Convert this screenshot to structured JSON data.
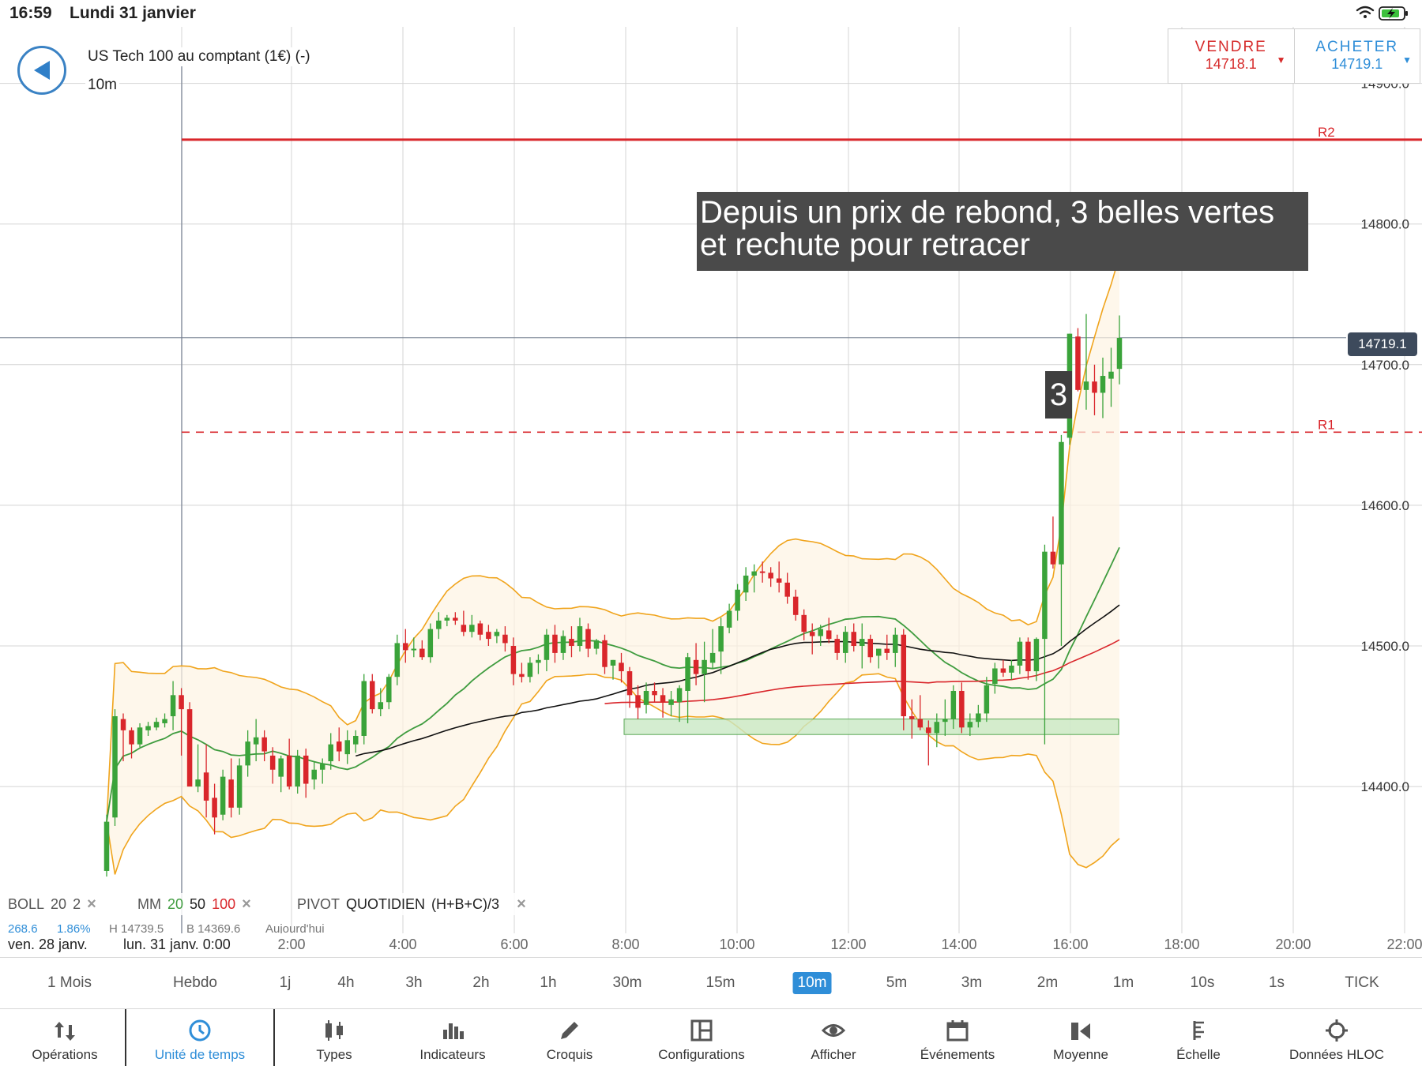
{
  "status": {
    "time": "16:59",
    "date": "Lundi 31 janvier"
  },
  "header": {
    "instrument": "US Tech 100 au comptant (1€) (-)",
    "timeframe": "10m"
  },
  "trade": {
    "sell_label": "VENDRE",
    "sell_price": "14718.1",
    "buy_label": "ACHETER",
    "buy_price": "14719.1",
    "sell_color": "#d62a2a",
    "buy_color": "#2f8ed8"
  },
  "annotation": {
    "line1": "Depuis un prix de rebond, 3 belles vertes",
    "line2": "et rechute pour retracer",
    "marker": "3"
  },
  "price_axis": {
    "labels": [
      "14900.0",
      "14800.0",
      "14700.0",
      "14600.0",
      "14500.0",
      "14400.0"
    ],
    "current": "14719.1"
  },
  "pivots": {
    "r2_label": "R2",
    "r2_value": 14860,
    "r1_label": "R1",
    "r1_value": 14652
  },
  "legend": {
    "boll_name": "BOLL",
    "boll_p1": "20",
    "boll_p2": "2",
    "mm_name": "MM",
    "mm_p1": "20",
    "mm_p2": "50",
    "mm_p3": "100",
    "pivot_name": "PIVOT",
    "pivot_period": "QUOTIDIEN",
    "pivot_formula": "(H+B+C)/3",
    "close_symbol": "×"
  },
  "legend_sub": {
    "v1": "268.6",
    "v2": "1.86%",
    "v3": "H 14739.5",
    "v4": "B 14369.6",
    "v5": "Aujourd'hui"
  },
  "time_axis": {
    "date_left": "ven. 28 janv.",
    "date_right": "lun. 31 janv. 0:00",
    "ticks": [
      "2:00",
      "4:00",
      "6:00",
      "8:00",
      "10:00",
      "12:00",
      "14:00",
      "16:00",
      "18:00",
      "20:00",
      "22:00"
    ]
  },
  "timeframes": [
    {
      "label": "1 Mois"
    },
    {
      "label": "Hebdo"
    },
    {
      "label": "1j"
    },
    {
      "label": "4h"
    },
    {
      "label": "3h"
    },
    {
      "label": "2h"
    },
    {
      "label": "1h"
    },
    {
      "label": "30m"
    },
    {
      "label": "15m"
    },
    {
      "label": "10m",
      "active": true
    },
    {
      "label": "5m"
    },
    {
      "label": "3m"
    },
    {
      "label": "2m"
    },
    {
      "label": "1m"
    },
    {
      "label": "10s"
    },
    {
      "label": "1s"
    },
    {
      "label": "TICK"
    }
  ],
  "toolbar": [
    {
      "label": "Opérations",
      "icon": "arrows-updown-icon"
    },
    {
      "label": "Unité de temps",
      "icon": "clock-icon",
      "active": true
    },
    {
      "label": "Types",
      "icon": "candles-icon"
    },
    {
      "label": "Indicateurs",
      "icon": "bar-chart-icon"
    },
    {
      "label": "Croquis",
      "icon": "pencil-icon"
    },
    {
      "label": "Configurations",
      "icon": "layout-icon"
    },
    {
      "label": "Afficher",
      "icon": "eye-icon"
    },
    {
      "label": "Événements",
      "icon": "calendar-icon"
    },
    {
      "label": "Moyenne",
      "icon": "average-icon"
    },
    {
      "label": "Échelle",
      "icon": "scale-icon"
    },
    {
      "label": "Données HLOC",
      "icon": "crosshair-icon"
    }
  ],
  "colors": {
    "up": "#3aa33a",
    "down": "#d9262b",
    "boll": "#f0a41c",
    "ma20": "#3f9c3f",
    "ma50": "#111111",
    "ma100": "#d9262b",
    "pivot": "#d9262b",
    "accent": "#2f8ed8"
  },
  "chart_data": {
    "type": "candlestick",
    "ylim": [
      14300,
      14950
    ],
    "support_zone": [
      14437,
      14448
    ],
    "ohlc": [
      [
        14340,
        14380,
        14336,
        14375
      ],
      [
        14378,
        14455,
        14372,
        14450
      ],
      [
        14448,
        14452,
        14418,
        14440
      ],
      [
        14440,
        14442,
        14420,
        14430
      ],
      [
        14430,
        14445,
        14428,
        14442
      ],
      [
        14440,
        14446,
        14436,
        14443
      ],
      [
        14442,
        14449,
        14440,
        14446
      ],
      [
        14445,
        14452,
        14442,
        14448
      ],
      [
        14450,
        14475,
        14440,
        14465
      ],
      [
        14465,
        14470,
        14422,
        14455
      ],
      [
        14455,
        14460,
        14402,
        14400
      ],
      [
        14400,
        14430,
        14396,
        14405
      ],
      [
        14410,
        14430,
        14378,
        14390
      ],
      [
        14392,
        14402,
        14366,
        14378
      ],
      [
        14380,
        14412,
        14376,
        14407
      ],
      [
        14405,
        14420,
        14378,
        14385
      ],
      [
        14385,
        14420,
        14380,
        14415
      ],
      [
        14415,
        14440,
        14407,
        14432
      ],
      [
        14430,
        14448,
        14418,
        14435
      ],
      [
        14435,
        14440,
        14418,
        14425
      ],
      [
        14422,
        14428,
        14402,
        14412
      ],
      [
        14407,
        14422,
        14396,
        14420
      ],
      [
        14422,
        14434,
        14398,
        14400
      ],
      [
        14400,
        14426,
        14395,
        14422
      ],
      [
        14422,
        14427,
        14392,
        14402
      ],
      [
        14405,
        14418,
        14398,
        14412
      ],
      [
        14412,
        14420,
        14402,
        14416
      ],
      [
        14418,
        14438,
        14412,
        14430
      ],
      [
        14432,
        14442,
        14418,
        14425
      ],
      [
        14423,
        14440,
        14416,
        14433
      ],
      [
        14430,
        14440,
        14424,
        14436
      ],
      [
        14436,
        14480,
        14430,
        14475
      ],
      [
        14475,
        14480,
        14452,
        14455
      ],
      [
        14455,
        14470,
        14450,
        14460
      ],
      [
        14460,
        14480,
        14455,
        14478
      ],
      [
        14478,
        14508,
        14472,
        14502
      ],
      [
        14502,
        14512,
        14488,
        14497
      ],
      [
        14497,
        14506,
        14492,
        14498
      ],
      [
        14498,
        14504,
        14490,
        14492
      ],
      [
        14492,
        14516,
        14488,
        14512
      ],
      [
        14512,
        14524,
        14505,
        14518
      ],
      [
        14518,
        14522,
        14514,
        14520
      ],
      [
        14520,
        14524,
        14515,
        14518
      ],
      [
        14515,
        14525,
        14507,
        14510
      ],
      [
        14510,
        14522,
        14506,
        14515
      ],
      [
        14516,
        14518,
        14504,
        14508
      ],
      [
        14510,
        14515,
        14500,
        14505
      ],
      [
        14507,
        14512,
        14502,
        14510
      ],
      [
        14508,
        14514,
        14496,
        14502
      ],
      [
        14500,
        14506,
        14472,
        14480
      ],
      [
        14480,
        14488,
        14474,
        14478
      ],
      [
        14478,
        14492,
        14474,
        14488
      ],
      [
        14488,
        14494,
        14480,
        14490
      ],
      [
        14490,
        14512,
        14482,
        14508
      ],
      [
        14508,
        14515,
        14488,
        14495
      ],
      [
        14495,
        14511,
        14490,
        14507
      ],
      [
        14505,
        14514,
        14492,
        14500
      ],
      [
        14500,
        14520,
        14496,
        14514
      ],
      [
        14512,
        14516,
        14492,
        14498
      ],
      [
        14498,
        14505,
        14494,
        14504
      ],
      [
        14504,
        14508,
        14480,
        14485
      ],
      [
        14486,
        14490,
        14476,
        14490
      ],
      [
        14488,
        14495,
        14474,
        14482
      ],
      [
        14482,
        14485,
        14456,
        14465
      ],
      [
        14465,
        14472,
        14448,
        14456
      ],
      [
        14458,
        14474,
        14452,
        14468
      ],
      [
        14468,
        14474,
        14460,
        14465
      ],
      [
        14465,
        14470,
        14449,
        14460
      ],
      [
        14458,
        14468,
        14450,
        14462
      ],
      [
        14460,
        14472,
        14446,
        14470
      ],
      [
        14468,
        14495,
        14445,
        14492
      ],
      [
        14490,
        14502,
        14472,
        14480
      ],
      [
        14480,
        14503,
        14460,
        14490
      ],
      [
        14488,
        14512,
        14484,
        14495
      ],
      [
        14496,
        14520,
        14480,
        14514
      ],
      [
        14513,
        14530,
        14509,
        14525
      ],
      [
        14525,
        14544,
        14518,
        14540
      ],
      [
        14538,
        14556,
        14532,
        14550
      ],
      [
        14550,
        14558,
        14538,
        14553
      ],
      [
        14553,
        14560,
        14545,
        14552
      ],
      [
        14552,
        14556,
        14542,
        14548
      ],
      [
        14548,
        14560,
        14538,
        14545
      ],
      [
        14545,
        14552,
        14530,
        14535
      ],
      [
        14535,
        14540,
        14518,
        14522
      ],
      [
        14522,
        14526,
        14504,
        14510
      ],
      [
        14510,
        14516,
        14494,
        14507
      ],
      [
        14507,
        14515,
        14500,
        14512
      ],
      [
        14511,
        14520,
        14502,
        14505
      ],
      [
        14505,
        14508,
        14490,
        14495
      ],
      [
        14495,
        14514,
        14488,
        14510
      ],
      [
        14510,
        14516,
        14496,
        14500
      ],
      [
        14500,
        14516,
        14484,
        14505
      ],
      [
        14505,
        14508,
        14488,
        14492
      ],
      [
        14493,
        14498,
        14484,
        14498
      ],
      [
        14498,
        14508,
        14490,
        14495
      ],
      [
        14495,
        14513,
        14485,
        14508
      ],
      [
        14508,
        14512,
        14440,
        14450
      ],
      [
        14450,
        14462,
        14434,
        14448
      ],
      [
        14448,
        14465,
        14440,
        14442
      ],
      [
        14442,
        14447,
        14415,
        14438
      ],
      [
        14438,
        14452,
        14428,
        14446
      ],
      [
        14446,
        14462,
        14436,
        14448
      ],
      [
        14448,
        14472,
        14441,
        14468
      ],
      [
        14468,
        14474,
        14438,
        14442
      ],
      [
        14442,
        14452,
        14436,
        14446
      ],
      [
        14446,
        14458,
        14442,
        14452
      ],
      [
        14452,
        14478,
        14446,
        14472
      ],
      [
        14473,
        14488,
        14466,
        14484
      ],
      [
        14484,
        14490,
        14478,
        14481
      ],
      [
        14481,
        14490,
        14476,
        14486
      ],
      [
        14486,
        14506,
        14480,
        14503
      ],
      [
        14503,
        14506,
        14476,
        14482
      ],
      [
        14482,
        14506,
        14475,
        14505
      ],
      [
        14505,
        14572,
        14430,
        14567
      ],
      [
        14567,
        14592,
        14555,
        14558
      ],
      [
        14558,
        14650,
        14500,
        14645
      ],
      [
        14648,
        14722,
        14643,
        14722
      ],
      [
        14720,
        14726,
        14681,
        14682
      ],
      [
        14682,
        14736,
        14668,
        14688
      ],
      [
        14688,
        14700,
        14664,
        14680
      ],
      [
        14680,
        14705,
        14662,
        14692
      ],
      [
        14690,
        14712,
        14670,
        14695
      ],
      [
        14697,
        14735,
        14686,
        14719
      ]
    ]
  }
}
